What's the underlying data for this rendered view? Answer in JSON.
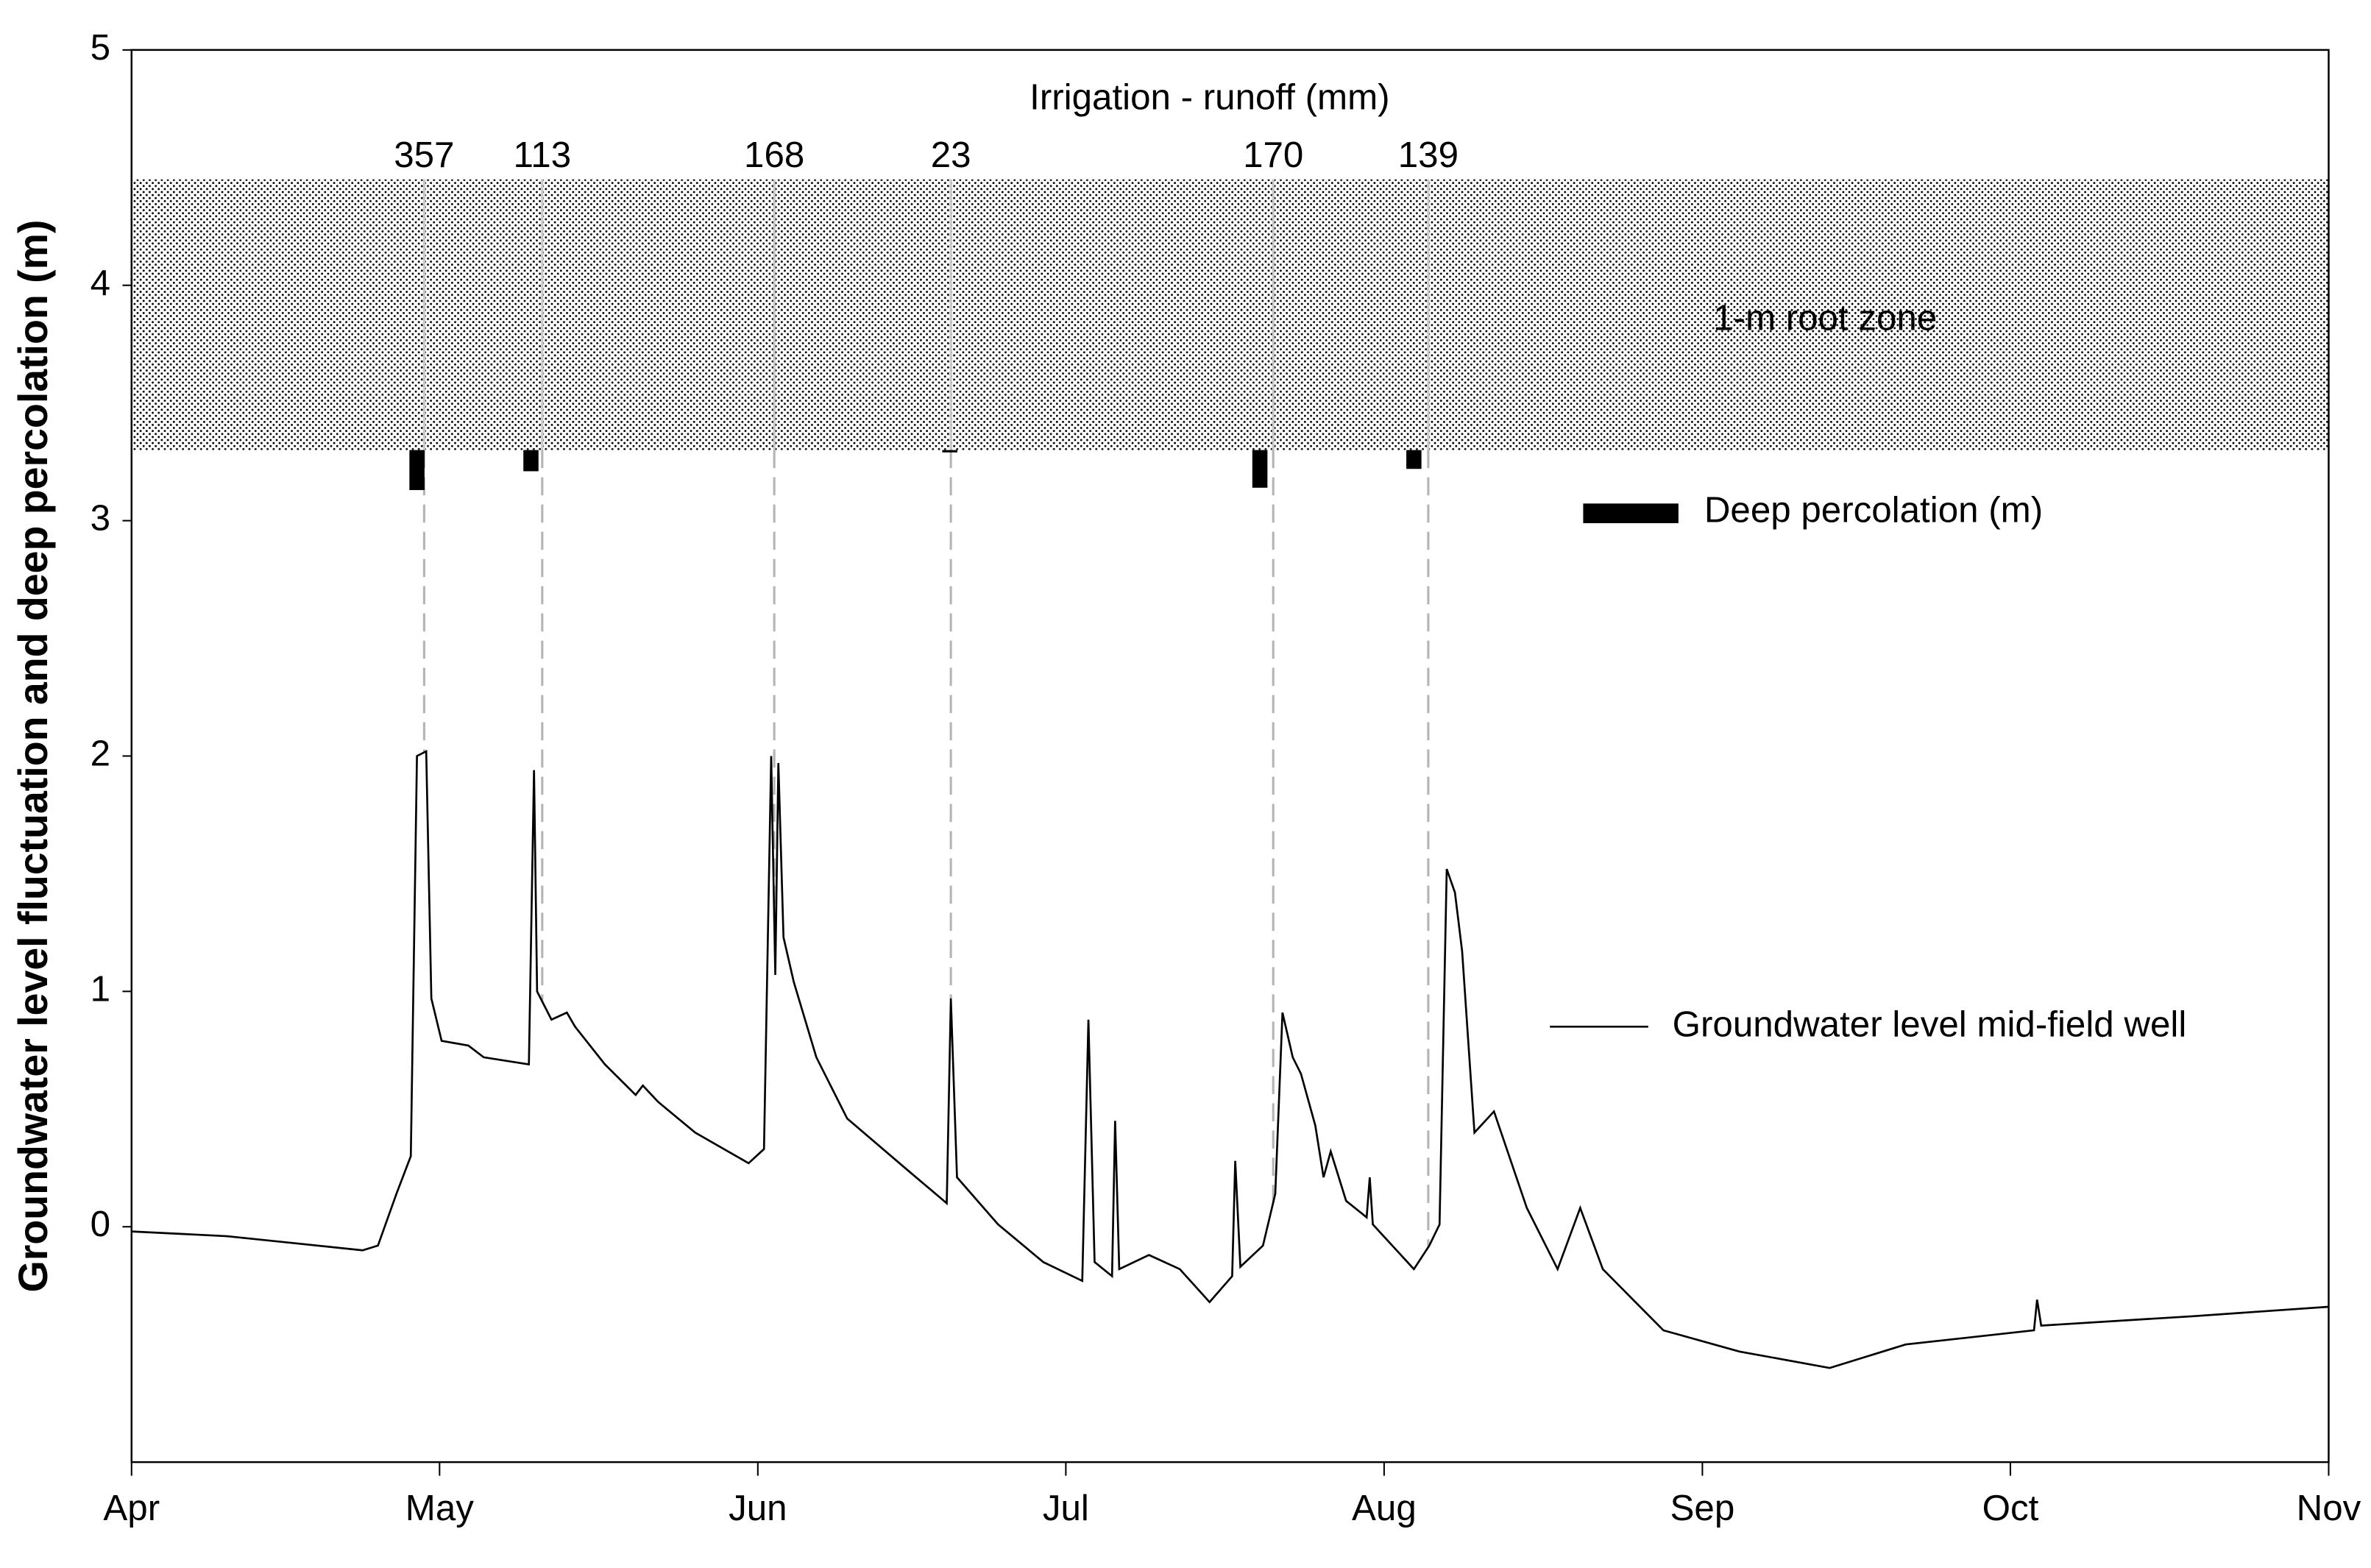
{
  "chart_data": {
    "type": "line",
    "ylabel": "Groundwater level fluctuation and deep percolation (m)",
    "xlim": [
      0,
      214
    ],
    "xticks": [
      {
        "value": 0,
        "label": "Apr"
      },
      {
        "value": 30,
        "label": "May"
      },
      {
        "value": 61,
        "label": "Jun"
      },
      {
        "value": 91,
        "label": "Jul"
      },
      {
        "value": 122,
        "label": "Aug"
      },
      {
        "value": 153,
        "label": "Sep"
      },
      {
        "value": 183,
        "label": "Oct"
      },
      {
        "value": 214,
        "label": "Nov"
      }
    ],
    "ylim": [
      -1,
      5
    ],
    "yticks": [
      0,
      1,
      2,
      3,
      4,
      5
    ],
    "series": [
      {
        "name": "Groundwater level mid-field well",
        "color": "#000000",
        "x": [
          0,
          9.3,
          22.5,
          24,
          25.8,
          27.2,
          27.8,
          28.7,
          29.2,
          30.2,
          32.8,
          34.3,
          38.7,
          39.2,
          39.5,
          40.9,
          42.4,
          43.2,
          46.1,
          49.1,
          49.8,
          51.3,
          54.9,
          60.1,
          61.6,
          62.3,
          62.7,
          63.0,
          63.5,
          64.5,
          66.7,
          69.7,
          75.6,
          79.4,
          79.8,
          80.4,
          84.4,
          88.8,
          92.6,
          93.2,
          93.8,
          95.5,
          95.8,
          96.2,
          99.1,
          102.1,
          105,
          107.2,
          107.5,
          108,
          110.2,
          111.4,
          112.1,
          113.1,
          113.9,
          115.3,
          116.1,
          116.8,
          118.3,
          120.3,
          120.6,
          120.9,
          124.9,
          126.4,
          127.4,
          128.1,
          128.9,
          129.6,
          130.8,
          132.7,
          135.9,
          138.9,
          141.1,
          143.3,
          149.2,
          156.6,
          165.4,
          172.8,
          185.3,
          185.6,
          186,
          200.8,
          214
        ],
        "values": [
          -0.02,
          -0.04,
          -0.1,
          -0.08,
          0.14,
          0.3,
          2.0,
          2.02,
          0.97,
          0.79,
          0.77,
          0.72,
          0.69,
          1.94,
          1.0,
          0.88,
          0.91,
          0.85,
          0.69,
          0.56,
          0.6,
          0.53,
          0.4,
          0.27,
          0.33,
          2.0,
          1.07,
          1.97,
          1.23,
          1.04,
          0.72,
          0.46,
          0.24,
          0.1,
          0.97,
          0.21,
          0.01,
          -0.15,
          -0.23,
          0.88,
          -0.15,
          -0.21,
          0.45,
          -0.18,
          -0.12,
          -0.18,
          -0.32,
          -0.21,
          0.28,
          -0.17,
          -0.08,
          0.14,
          0.91,
          0.72,
          0.65,
          0.43,
          0.21,
          0.32,
          0.11,
          0.04,
          0.21,
          0.01,
          -0.18,
          -0.08,
          0.01,
          1.52,
          1.42,
          1.17,
          0.4,
          0.49,
          0.08,
          -0.18,
          0.08,
          -0.18,
          -0.44,
          -0.53,
          -0.6,
          -0.5,
          -0.44,
          -0.31,
          -0.42,
          -0.38,
          -0.34
        ]
      }
    ],
    "percolation": {
      "name": "Deep percolation (m)",
      "color": "#000000",
      "x": [
        27.8,
        38.9,
        79.7,
        109.9,
        124.9
      ],
      "values": [
        0.17,
        0.09,
        0.01,
        0.16,
        0.08
      ]
    },
    "irrigation": {
      "name": "Irrigation - runoff (mm)",
      "x": [
        28.5,
        40,
        62.6,
        79.8,
        111.2,
        126.3
      ],
      "values": [
        357,
        113,
        168,
        23,
        170,
        139
      ]
    },
    "root_zone": {
      "label": "1-m  root zone",
      "range": [
        3.3,
        4.45
      ]
    }
  }
}
